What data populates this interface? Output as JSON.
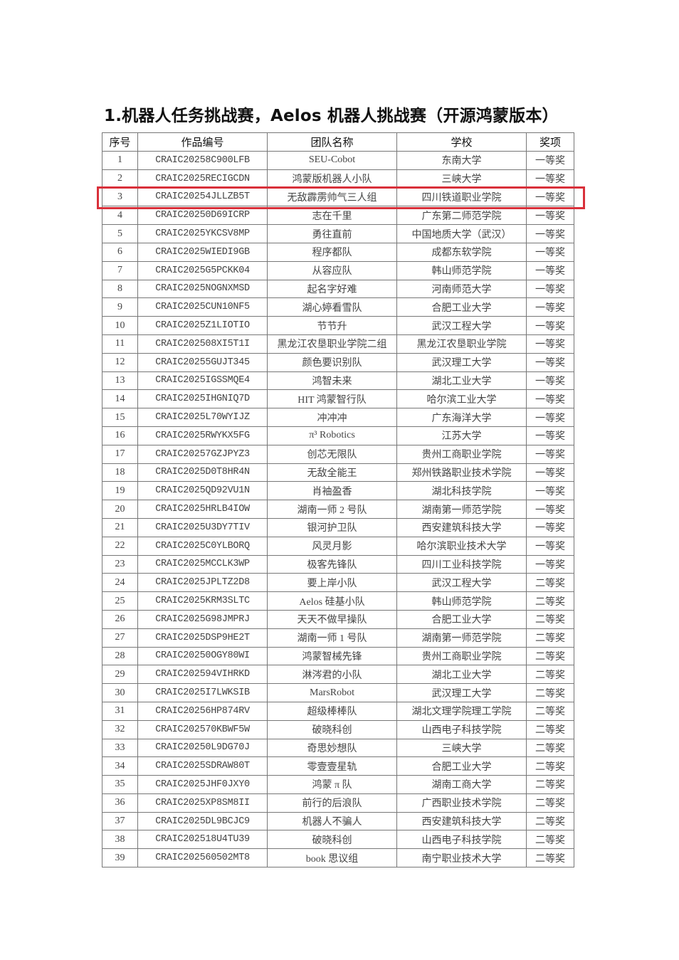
{
  "title": "1.机器人任务挑战赛，Aelos 机器人挑战赛（开源鸿蒙版本）",
  "highlight_color": "#d9303a",
  "highlighted_row": 3,
  "table": {
    "headers": [
      "序号",
      "作品编号",
      "团队名称",
      "学校",
      "奖项"
    ],
    "rows": [
      [
        "1",
        "CRAIC20258C900LFB",
        "SEU-Cobot",
        "东南大学",
        "一等奖"
      ],
      [
        "2",
        "CRAIC2025RECIGCDN",
        "鸿蒙版机器人小队",
        "三峡大学",
        "一等奖"
      ],
      [
        "3",
        "CRAIC20254JLLZB5T",
        "无敌霹雳帅气三人组",
        "四川铁道职业学院",
        "一等奖"
      ],
      [
        "4",
        "CRAIC20250D69ICRP",
        "志在千里",
        "广东第二师范学院",
        "一等奖"
      ],
      [
        "5",
        "CRAIC2025YKCSV8MP",
        "勇往直前",
        "中国地质大学（武汉）",
        "一等奖"
      ],
      [
        "6",
        "CRAIC2025WIEDI9GB",
        "程序都队",
        "成都东软学院",
        "一等奖"
      ],
      [
        "7",
        "CRAIC2025G5PCKK04",
        "从容应队",
        "韩山师范学院",
        "一等奖"
      ],
      [
        "8",
        "CRAIC2025NOGNXMSD",
        "起名字好难",
        "河南师范大学",
        "一等奖"
      ],
      [
        "9",
        "CRAIC2025CUN10NF5",
        "湖心婷看雪队",
        "合肥工业大学",
        "一等奖"
      ],
      [
        "10",
        "CRAIC2025Z1LIOTIO",
        "节节升",
        "武汉工程大学",
        "一等奖"
      ],
      [
        "11",
        "CRAIC202508XI5T1I",
        "黑龙江农垦职业学院二组",
        "黑龙江农垦职业学院",
        "一等奖"
      ],
      [
        "12",
        "CRAIC20255GUJT345",
        "颜色要识别队",
        "武汉理工大学",
        "一等奖"
      ],
      [
        "13",
        "CRAIC2025IGSSMQE4",
        "鸿智未来",
        "湖北工业大学",
        "一等奖"
      ],
      [
        "14",
        "CRAIC2025IHGNIQ7D",
        "HIT 鸿蒙智行队",
        "哈尔滨工业大学",
        "一等奖"
      ],
      [
        "15",
        "CRAIC2025L70WYIJZ",
        "冲冲冲",
        "广东海洋大学",
        "一等奖"
      ],
      [
        "16",
        "CRAIC2025RWYKX5FG",
        "π³ Robotics",
        "江苏大学",
        "一等奖"
      ],
      [
        "17",
        "CRAIC20257GZJPYZ3",
        "创芯无限队",
        "贵州工商职业学院",
        "一等奖"
      ],
      [
        "18",
        "CRAIC2025D0T8HR4N",
        "无敌全能王",
        "郑州铁路职业技术学院",
        "一等奖"
      ],
      [
        "19",
        "CRAIC2025QD92VU1N",
        "肖袖盈香",
        "湖北科技学院",
        "一等奖"
      ],
      [
        "20",
        "CRAIC2025HRLB4IOW",
        "湖南一师 2 号队",
        "湖南第一师范学院",
        "一等奖"
      ],
      [
        "21",
        "CRAIC2025U3DY7TIV",
        "银河护卫队",
        "西安建筑科技大学",
        "一等奖"
      ],
      [
        "22",
        "CRAIC2025C0YLBORQ",
        "风灵月影",
        "哈尔滨职业技术大学",
        "一等奖"
      ],
      [
        "23",
        "CRAIC2025MCCLK3WP",
        "极客先锋队",
        "四川工业科技学院",
        "一等奖"
      ],
      [
        "24",
        "CRAIC2025JPLTZ2D8",
        "要上岸小队",
        "武汉工程大学",
        "二等奖"
      ],
      [
        "25",
        "CRAIC2025KRM3SLTC",
        "Aelos 硅基小队",
        "韩山师范学院",
        "二等奖"
      ],
      [
        "26",
        "CRAIC2025G98JMPRJ",
        "天天不做早操队",
        "合肥工业大学",
        "二等奖"
      ],
      [
        "27",
        "CRAIC2025DSP9HE2T",
        "湖南一师 1 号队",
        "湖南第一师范学院",
        "二等奖"
      ],
      [
        "28",
        "CRAIC20250OGY80WI",
        "鸿蒙智械先锋",
        "贵州工商职业学院",
        "二等奖"
      ],
      [
        "29",
        "CRAIC202594VIHRKD",
        "淋涔君的小队",
        "湖北工业大学",
        "二等奖"
      ],
      [
        "30",
        "CRAIC2025I7LWKSIB",
        "MarsRobot",
        "武汉理工大学",
        "二等奖"
      ],
      [
        "31",
        "CRAIC20256HP874RV",
        "超级棒棒队",
        "湖北文理学院理工学院",
        "二等奖"
      ],
      [
        "32",
        "CRAIC202570KBWF5W",
        "破晓科创",
        "山西电子科技学院",
        "二等奖"
      ],
      [
        "33",
        "CRAIC20250L9DG70J",
        "奇思妙想队",
        "三峡大学",
        "二等奖"
      ],
      [
        "34",
        "CRAIC2025SDRAW80T",
        "零壹壹星轨",
        "合肥工业大学",
        "二等奖"
      ],
      [
        "35",
        "CRAIC2025JHF0JXY0",
        "鸿蒙 π 队",
        "湖南工商大学",
        "二等奖"
      ],
      [
        "36",
        "CRAIC2025XP8SM8II",
        "前行的后浪队",
        "广西职业技术学院",
        "二等奖"
      ],
      [
        "37",
        "CRAIC2025DL9BCJC9",
        "机器人不骗人",
        "西安建筑科技大学",
        "二等奖"
      ],
      [
        "38",
        "CRAIC202518U4TU39",
        "破晓科创",
        "山西电子科技学院",
        "二等奖"
      ],
      [
        "39",
        "CRAIC202560502MT8",
        "book 思议组",
        "南宁职业技术大学",
        "二等奖"
      ]
    ]
  }
}
